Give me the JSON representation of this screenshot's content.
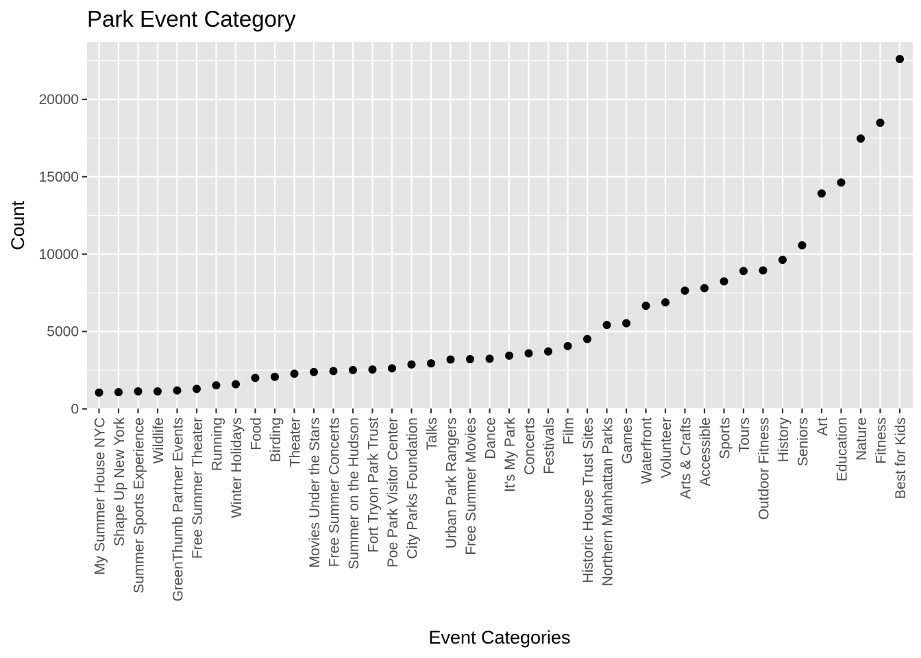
{
  "chart_data": {
    "type": "scatter",
    "title": "Park Event Category",
    "xlabel": "Event Categories",
    "ylabel": "Count",
    "ylim": [
      0,
      23500
    ],
    "yticks": [
      0,
      5000,
      10000,
      15000,
      20000
    ],
    "ytick_labels": [
      "0",
      "5000",
      "10000",
      "15000",
      "20000"
    ],
    "grid": true,
    "legend": "none",
    "colors": {
      "panel": "#e5e5e5",
      "grid": "#ffffff",
      "point": "#000000",
      "tick_text": "#4d4d4d"
    },
    "categories": [
      "My Summer House NYC",
      "Shape Up New York",
      "Summer Sports Experience",
      "Wildlife",
      "GreenThumb Partner Events",
      "Free Summer Theater",
      "Running",
      "Winter Holidays",
      "Food",
      "Birding",
      "Theater",
      "Movies Under the Stars",
      "Free Summer Concerts",
      "Summer on the Hudson",
      "Fort Tryon Park Trust",
      "Poe Park Visitor Center",
      "City Parks Foundation",
      "Talks",
      "Urban Park Rangers",
      "Free Summer Movies",
      "Dance",
      "It's My Park",
      "Concerts",
      "Festivals",
      "Film",
      "Historic House Trust Sites",
      "Northern Manhattan Parks",
      "Games",
      "Waterfront",
      "Volunteer",
      "Arts & Crafts",
      "Accessible",
      "Sports",
      "Tours",
      "Outdoor Fitness",
      "History",
      "Seniors",
      "Art",
      "Education",
      "Nature",
      "Fitness",
      "Best for Kids"
    ],
    "values": [
      1050,
      1080,
      1130,
      1130,
      1190,
      1290,
      1520,
      1590,
      2000,
      2070,
      2270,
      2380,
      2440,
      2510,
      2540,
      2620,
      2870,
      2940,
      3190,
      3210,
      3240,
      3440,
      3590,
      3710,
      4060,
      4510,
      5420,
      5530,
      6660,
      6880,
      7640,
      7800,
      8240,
      8910,
      8950,
      9630,
      10570,
      13920,
      14630,
      17470,
      18490,
      22610
    ]
  }
}
